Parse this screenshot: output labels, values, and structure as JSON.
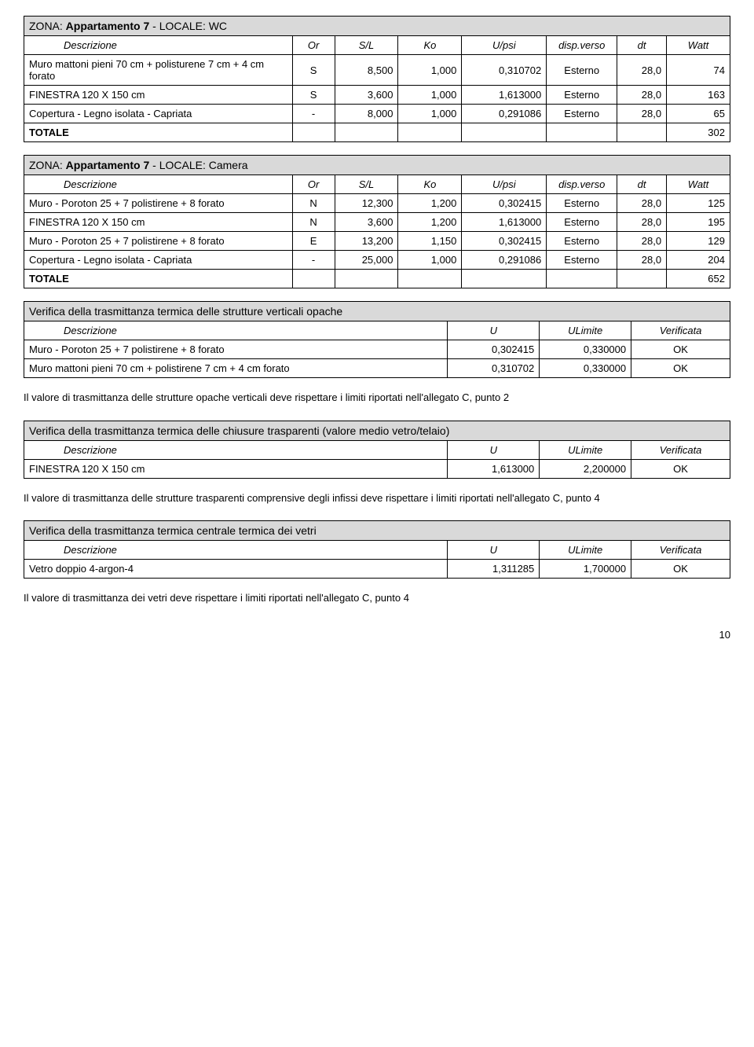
{
  "tables": [
    {
      "title_html": "ZONA: <b>Appartamento 7</b> - LOCALE: WC",
      "headers": [
        "Descrizione",
        "Or",
        "S/L",
        "Ko",
        "U/psi",
        "disp.verso",
        "dt",
        "Watt"
      ],
      "rows": [
        {
          "desc": "Muro mattoni pieni 70 cm + polisturene 7 cm + 4 cm forato",
          "or": "S",
          "sl": "8,500",
          "ko": "1,000",
          "upsi": "0,310702",
          "disp": "Esterno",
          "dt": "28,0",
          "watt": "74"
        },
        {
          "desc": "FINESTRA 120 X 150 cm",
          "or": "S",
          "sl": "3,600",
          "ko": "1,000",
          "upsi": "1,613000",
          "disp": "Esterno",
          "dt": "28,0",
          "watt": "163"
        },
        {
          "desc": "Copertura - Legno isolata - Capriata",
          "or": "-",
          "sl": "8,000",
          "ko": "1,000",
          "upsi": "0,291086",
          "disp": "Esterno",
          "dt": "28,0",
          "watt": "65"
        }
      ],
      "totale_label": "TOTALE",
      "totale": "302"
    },
    {
      "title_html": "ZONA: <b>Appartamento 7</b> - LOCALE: Camera",
      "headers": [
        "Descrizione",
        "Or",
        "S/L",
        "Ko",
        "U/psi",
        "disp.verso",
        "dt",
        "Watt"
      ],
      "rows": [
        {
          "desc": "Muro - Poroton 25 + 7 polistirene + 8 forato",
          "or": "N",
          "sl": "12,300",
          "ko": "1,200",
          "upsi": "0,302415",
          "disp": "Esterno",
          "dt": "28,0",
          "watt": "125"
        },
        {
          "desc": "FINESTRA 120 X 150 cm",
          "or": "N",
          "sl": "3,600",
          "ko": "1,200",
          "upsi": "1,613000",
          "disp": "Esterno",
          "dt": "28,0",
          "watt": "195"
        },
        {
          "desc": "Muro - Poroton 25 + 7 polistirene + 8 forato",
          "or": "E",
          "sl": "13,200",
          "ko": "1,150",
          "upsi": "0,302415",
          "disp": "Esterno",
          "dt": "28,0",
          "watt": "129"
        },
        {
          "desc": "Copertura - Legno isolata - Capriata",
          "or": "-",
          "sl": "25,000",
          "ko": "1,000",
          "upsi": "0,291086",
          "disp": "Esterno",
          "dt": "28,0",
          "watt": "204"
        }
      ],
      "totale_label": "TOTALE",
      "totale": "652"
    }
  ],
  "verify_tables": [
    {
      "title": "Verifica della trasmittanza termica delle strutture verticali opache",
      "headers": [
        "Descrizione",
        "U",
        "ULimite",
        "Verificata"
      ],
      "rows": [
        {
          "desc": "Muro - Poroton 25 + 7 polistirene + 8 forato",
          "u": "0,302415",
          "ul": "0,330000",
          "v": "OK"
        },
        {
          "desc": "Muro mattoni pieni 70 cm + polistirene 7 cm + 4 cm forato",
          "u": "0,310702",
          "ul": "0,330000",
          "v": "OK"
        }
      ],
      "note": "Il valore di trasmittanza delle strutture opache verticali deve rispettare i limiti riportati nell'allegato C, punto 2"
    },
    {
      "title": "Verifica della trasmittanza termica delle chiusure trasparenti (valore medio vetro/telaio)",
      "headers": [
        "Descrizione",
        "U",
        "ULimite",
        "Verificata"
      ],
      "rows": [
        {
          "desc": "FINESTRA 120 X 150 cm",
          "u": "1,613000",
          "ul": "2,200000",
          "v": "OK"
        }
      ],
      "note": "Il valore di trasmittanza delle strutture trasparenti comprensive degli infissi deve rispettare i limiti riportati nell'allegato C, punto 4"
    },
    {
      "title": "Verifica della trasmittanza termica centrale termica dei vetri",
      "headers": [
        "Descrizione",
        "U",
        "ULimite",
        "Verificata"
      ],
      "rows": [
        {
          "desc": "Vetro doppio 4-argon-4",
          "u": "1,311285",
          "ul": "1,700000",
          "v": "OK"
        }
      ],
      "note": "Il valore di trasmittanza dei vetri deve rispettare i limiti riportati nell'allegato C, punto 4"
    }
  ],
  "page_number": "10"
}
